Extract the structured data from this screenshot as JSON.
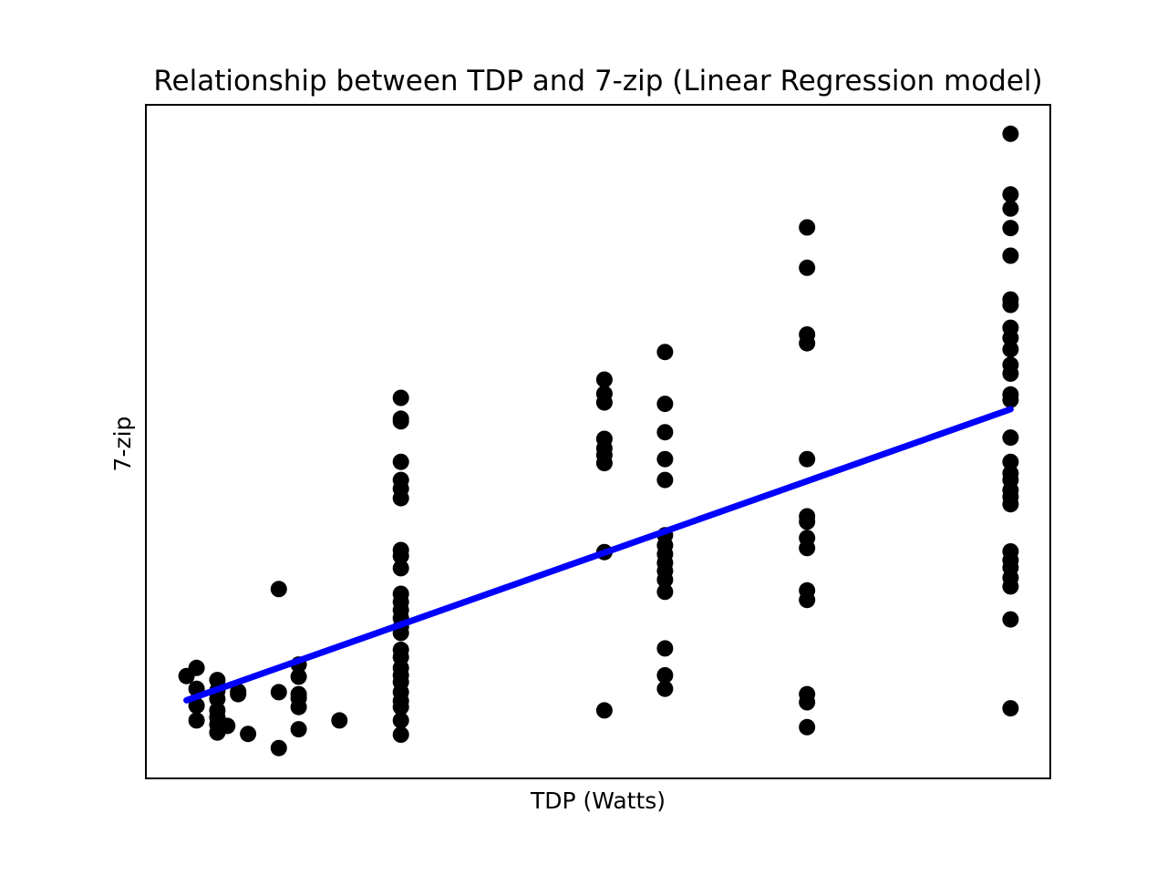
{
  "chart_data": {
    "type": "scatter",
    "title": "Relationship between TDP and 7-zip (Linear Regression model)",
    "xlabel": "TDP (Watts)",
    "ylabel": "7-zip",
    "xlim": [
      0,
      100
    ],
    "ylim": [
      0,
      100
    ],
    "grid": false,
    "ticks_visible": false,
    "colors": {
      "points": "#000000",
      "regression_line": "#0000ff",
      "frame": "#000000"
    },
    "series": [
      {
        "type": "scatter",
        "points": [
          [
            4.5,
            15.2
          ],
          [
            5.6,
            16.4
          ],
          [
            5.6,
            13.3
          ],
          [
            5.6,
            10.8
          ],
          [
            5.6,
            8.6
          ],
          [
            7.9,
            14.6
          ],
          [
            7.9,
            13.0
          ],
          [
            7.9,
            11.8
          ],
          [
            7.9,
            10.1
          ],
          [
            7.9,
            9.1
          ],
          [
            7.9,
            8.0
          ],
          [
            7.9,
            6.8
          ],
          [
            9.0,
            7.8
          ],
          [
            10.2,
            12.9
          ],
          [
            10.2,
            12.5
          ],
          [
            11.3,
            6.6
          ],
          [
            14.7,
            28.1
          ],
          [
            14.7,
            12.8
          ],
          [
            14.7,
            4.5
          ],
          [
            16.9,
            16.9
          ],
          [
            16.9,
            15.1
          ],
          [
            16.9,
            12.5
          ],
          [
            16.9,
            11.9
          ],
          [
            16.9,
            10.6
          ],
          [
            16.9,
            7.3
          ],
          [
            21.4,
            8.6
          ],
          [
            28.2,
            56.5
          ],
          [
            28.2,
            53.4
          ],
          [
            28.2,
            53.0
          ],
          [
            28.2,
            47.0
          ],
          [
            28.2,
            44.3
          ],
          [
            28.2,
            43.0
          ],
          [
            28.2,
            41.6
          ],
          [
            28.2,
            33.9
          ],
          [
            28.2,
            33.0
          ],
          [
            28.2,
            31.2
          ],
          [
            28.2,
            27.4
          ],
          [
            28.2,
            26.2
          ],
          [
            28.2,
            25.0
          ],
          [
            28.2,
            23.8
          ],
          [
            28.2,
            22.5
          ],
          [
            28.2,
            21.6
          ],
          [
            28.2,
            19.1
          ],
          [
            28.2,
            18.0
          ],
          [
            28.2,
            16.4
          ],
          [
            28.2,
            15.3
          ],
          [
            28.2,
            14.3
          ],
          [
            28.2,
            12.8
          ],
          [
            28.2,
            11.5
          ],
          [
            28.2,
            10.6
          ],
          [
            28.2,
            8.6
          ],
          [
            28.2,
            6.5
          ],
          [
            50.7,
            59.2
          ],
          [
            50.7,
            57.1
          ],
          [
            50.7,
            55.8
          ],
          [
            50.7,
            50.4
          ],
          [
            50.7,
            49.0
          ],
          [
            50.7,
            48.0
          ],
          [
            50.7,
            46.8
          ],
          [
            50.7,
            33.6
          ],
          [
            50.7,
            10.1
          ],
          [
            57.4,
            63.3
          ],
          [
            57.4,
            55.6
          ],
          [
            57.4,
            51.4
          ],
          [
            57.4,
            47.4
          ],
          [
            57.4,
            44.3
          ],
          [
            57.4,
            36.1
          ],
          [
            57.4,
            34.6
          ],
          [
            57.4,
            33.3
          ],
          [
            57.4,
            32.0
          ],
          [
            57.4,
            30.8
          ],
          [
            57.4,
            29.5
          ],
          [
            57.4,
            27.7
          ],
          [
            57.4,
            19.3
          ],
          [
            57.4,
            15.3
          ],
          [
            57.4,
            13.3
          ],
          [
            73.1,
            81.8
          ],
          [
            73.1,
            75.8
          ],
          [
            73.1,
            65.9
          ],
          [
            73.1,
            64.6
          ],
          [
            73.1,
            47.4
          ],
          [
            73.1,
            38.9
          ],
          [
            73.1,
            38.1
          ],
          [
            73.1,
            35.7
          ],
          [
            73.1,
            34.2
          ],
          [
            73.1,
            27.9
          ],
          [
            73.1,
            26.5
          ],
          [
            73.1,
            12.5
          ],
          [
            73.1,
            11.3
          ],
          [
            73.1,
            7.6
          ],
          [
            95.6,
            95.7
          ],
          [
            95.6,
            86.7
          ],
          [
            95.6,
            84.6
          ],
          [
            95.6,
            81.7
          ],
          [
            95.6,
            77.6
          ],
          [
            95.6,
            71.1
          ],
          [
            95.6,
            70.3
          ],
          [
            95.6,
            66.9
          ],
          [
            95.6,
            65.4
          ],
          [
            95.6,
            63.7
          ],
          [
            95.6,
            61.4
          ],
          [
            95.6,
            60.1
          ],
          [
            95.6,
            57.0
          ],
          [
            95.6,
            56.2
          ],
          [
            95.6,
            50.6
          ],
          [
            95.6,
            47.0
          ],
          [
            95.6,
            45.3
          ],
          [
            95.6,
            44.3
          ],
          [
            95.6,
            42.8
          ],
          [
            95.6,
            41.8
          ],
          [
            95.6,
            40.7
          ],
          [
            95.6,
            33.7
          ],
          [
            95.6,
            32.4
          ],
          [
            95.6,
            31.3
          ],
          [
            95.6,
            29.8
          ],
          [
            95.6,
            28.5
          ],
          [
            95.6,
            23.6
          ],
          [
            95.6,
            10.4
          ]
        ]
      },
      {
        "type": "line",
        "points": [
          [
            4.5,
            11.6
          ],
          [
            95.6,
            54.8
          ]
        ]
      }
    ]
  }
}
